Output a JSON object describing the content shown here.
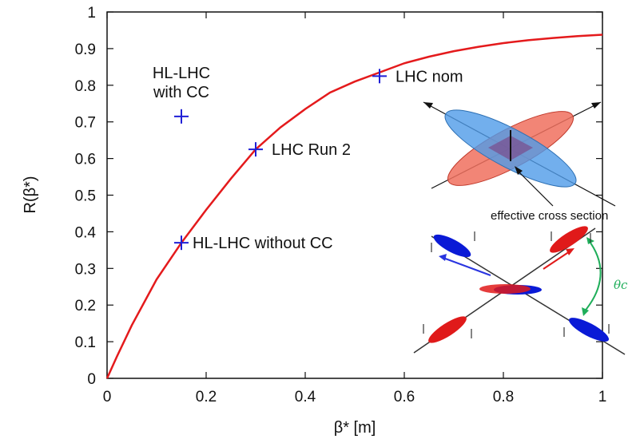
{
  "colors": {
    "curve": "#e41a1c",
    "marker": "#1f1fd6",
    "beam_blue": "#4f9be8",
    "beam_red": "#f0705e",
    "bunch_blue": "#0a1ad6",
    "bunch_red": "#e01a1a",
    "crossing_arrow": "#1fae5a"
  },
  "chart_data": {
    "type": "line",
    "xlabel": "β* [m]",
    "ylabel": "R(β*)",
    "xlim": [
      0,
      1
    ],
    "ylim": [
      0,
      1
    ],
    "x_ticks": [
      "0",
      "0.2",
      "0.4",
      "0.6",
      "0.8",
      "1"
    ],
    "y_ticks": [
      "0",
      "0.1",
      "0.2",
      "0.3",
      "0.4",
      "0.5",
      "0.6",
      "0.7",
      "0.8",
      "0.9",
      "1"
    ],
    "grid": false,
    "series": [
      {
        "x": [
          0,
          0.02,
          0.05,
          0.08,
          0.1,
          0.15,
          0.2,
          0.25,
          0.3,
          0.35,
          0.4,
          0.45,
          0.5,
          0.55,
          0.6,
          0.65,
          0.7,
          0.75,
          0.8,
          0.85,
          0.9,
          0.95,
          1.0
        ],
        "y": [
          0,
          0.06,
          0.145,
          0.22,
          0.27,
          0.37,
          0.46,
          0.545,
          0.625,
          0.685,
          0.735,
          0.78,
          0.81,
          0.835,
          0.86,
          0.878,
          0.893,
          0.905,
          0.915,
          0.923,
          0.929,
          0.934,
          0.938
        ]
      }
    ],
    "markers": [
      {
        "label": "HL-LHC without CC",
        "x": 0.15,
        "y": 0.37
      },
      {
        "label": "LHC Run 2",
        "x": 0.3,
        "y": 0.625
      },
      {
        "label": "LHC nom",
        "x": 0.55,
        "y": 0.825
      },
      {
        "label_lines": [
          "HL-LHC",
          "with CC"
        ],
        "x": 0.15,
        "y": 0.715
      }
    ],
    "annotations": {
      "effective_cross_section": "effective cross section",
      "crossing_angle": "θc"
    }
  }
}
